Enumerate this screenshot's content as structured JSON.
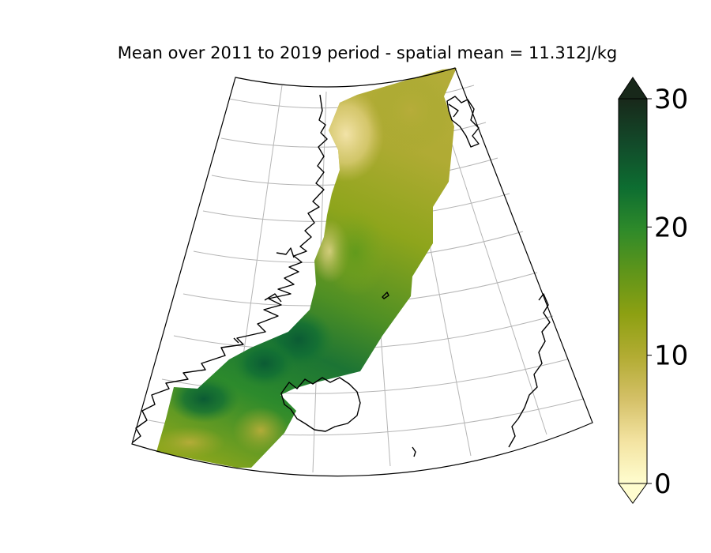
{
  "title": "Mean over 2011 to 2019 period - spatial mean = 11.312J/kg",
  "colorbar": {
    "min": 0,
    "max": 30,
    "ticks": [
      "0",
      "10",
      "20",
      "30"
    ],
    "extend": "both",
    "colormap": [
      "#fffdcf",
      "#f3e3a1",
      "#d4c067",
      "#b2ac33",
      "#8da012",
      "#5f951a",
      "#2e8a2a",
      "#0d6d31",
      "#124b2a",
      "#18281a"
    ]
  },
  "map": {
    "projection": "conic",
    "gridlines": true,
    "coastlines": true,
    "field_colors": {
      "low": "#f0e0a0",
      "mid": "#b3ae38",
      "high_mid": "#7fa61c",
      "high": "#0e6f35"
    }
  }
}
